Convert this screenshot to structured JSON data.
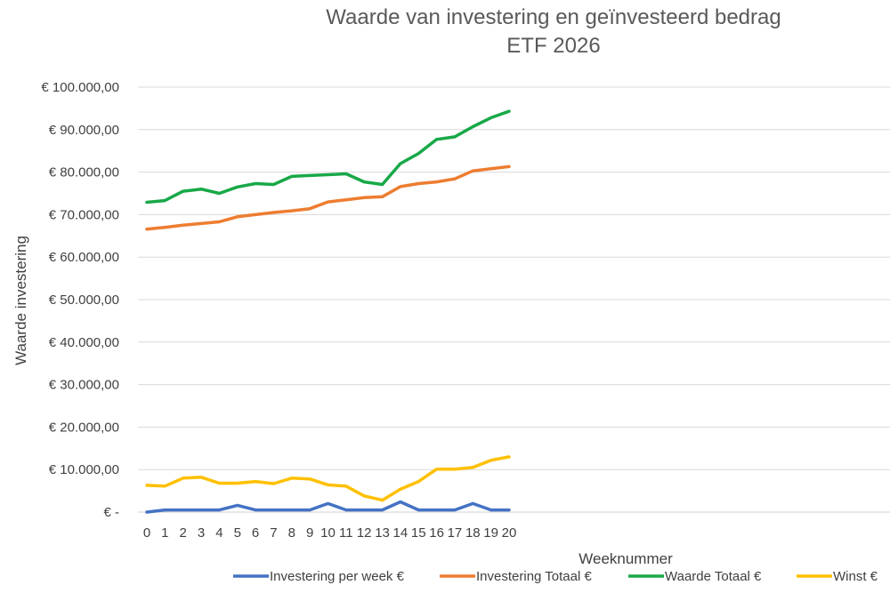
{
  "chart_data": {
    "type": "line",
    "title": "Waarde van investering en geïnvesteerd bedrag",
    "subtitle": "ETF 2026",
    "xlabel": "Weeknummer",
    "ylabel": "Waarde investering",
    "categories": [
      "0",
      "1",
      "2",
      "3",
      "4",
      "5",
      "6",
      "7",
      "8",
      "9",
      "10",
      "11",
      "12",
      "13",
      "14",
      "15",
      "16",
      "17",
      "18",
      "19",
      "20"
    ],
    "ylim": [
      0,
      100000
    ],
    "ytick_labels": [
      "€ -",
      "€ 10.000,00",
      "€ 20.000,00",
      "€ 30.000,00",
      "€ 40.000,00",
      "€ 50.000,00",
      "€ 60.000,00",
      "€ 70.000,00",
      "€ 80.000,00",
      "€ 90.000,00",
      "€ 100.000,00"
    ],
    "grid": true,
    "legend_position": "bottom",
    "series": [
      {
        "name": "Investering per week €",
        "color": "#4472C4",
        "values": [
          0,
          500,
          500,
          500,
          500,
          1600,
          500,
          500,
          500,
          500,
          2000,
          500,
          500,
          500,
          2400,
          500,
          500,
          500,
          2000,
          500,
          500
        ]
      },
      {
        "name": "Investering Totaal €",
        "color": "#ED7D31",
        "values": [
          66600,
          67000,
          67500,
          67900,
          68300,
          69500,
          70000,
          70500,
          70900,
          71400,
          73000,
          73500,
          74000,
          74200,
          76600,
          77300,
          77700,
          78400,
          80300,
          80800,
          81300
        ]
      },
      {
        "name": "Waarde Totaal €",
        "color": "#18A848",
        "values": [
          72900,
          73300,
          75500,
          76000,
          75000,
          76500,
          77300,
          77100,
          79000,
          79200,
          79400,
          79600,
          77700,
          77100,
          82000,
          84400,
          87700,
          88300,
          90700,
          92800,
          94300
        ]
      },
      {
        "name": "Winst €",
        "color": "#FFC000",
        "values": [
          6300,
          6100,
          8000,
          8200,
          6800,
          6800,
          7200,
          6700,
          8000,
          7800,
          6400,
          6100,
          3800,
          2800,
          5400,
          7200,
          10100,
          10100,
          10500,
          12200,
          13000
        ]
      }
    ]
  }
}
